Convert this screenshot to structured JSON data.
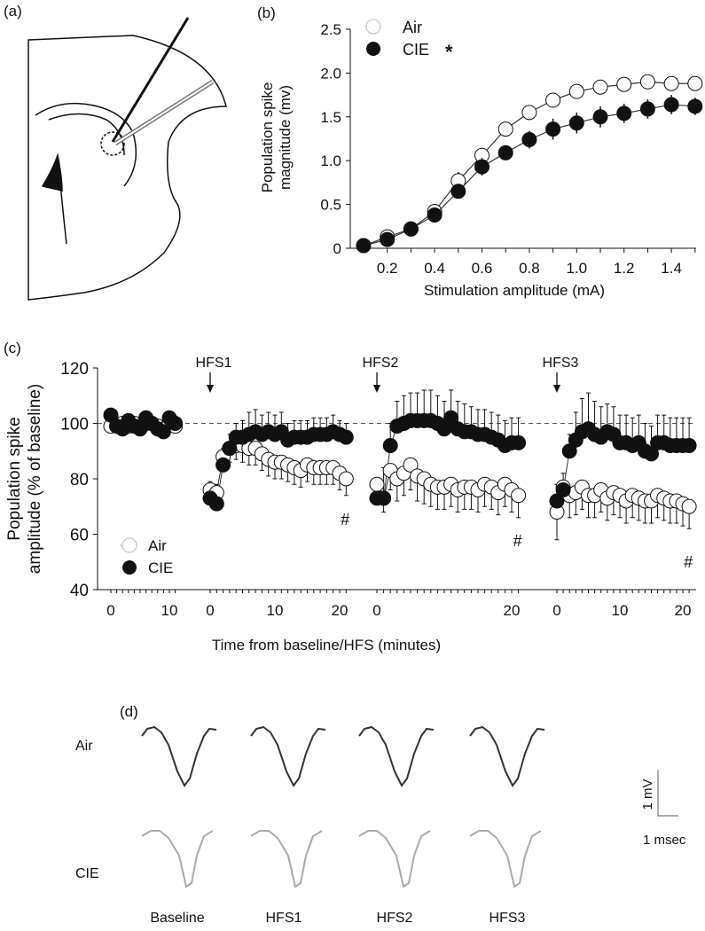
{
  "panel_labels": {
    "a": "(a)",
    "b": "(b)",
    "c": "(c)",
    "d": "(d)"
  },
  "chart_data": [
    {
      "id": "b",
      "type": "line",
      "xlabel": "Stimulation amplitude (mA)",
      "ylabel_lines": [
        "Population spike",
        "magnitude (mv)"
      ],
      "xlim": [
        0.05,
        1.55
      ],
      "ylim": [
        0,
        2.5
      ],
      "xticks": [
        "0.2",
        "0.4",
        "0.6",
        "0.8",
        "1.0",
        "1.2",
        "1.4"
      ],
      "xtick_values": [
        0.2,
        0.4,
        0.6,
        0.8,
        1.0,
        1.2,
        1.4
      ],
      "yticks": [
        "0",
        "0.5",
        "1.0",
        "1.5",
        "2.0",
        "2.5"
      ],
      "ytick_values": [
        0,
        0.5,
        1.0,
        1.5,
        2.0,
        2.5
      ],
      "legend": {
        "placement": "top-left",
        "significance_mark": "*"
      },
      "x": [
        0.1,
        0.2,
        0.3,
        0.4,
        0.5,
        0.6,
        0.7,
        0.8,
        0.9,
        1.0,
        1.1,
        1.2,
        1.3,
        1.4,
        1.5
      ],
      "series": [
        {
          "name": "Air",
          "marker": "open",
          "values": [
            0.03,
            0.13,
            0.22,
            0.42,
            0.77,
            1.06,
            1.36,
            1.55,
            1.69,
            1.79,
            1.84,
            1.87,
            1.9,
            1.88,
            1.88
          ],
          "err": [
            0.01,
            0.02,
            0.02,
            0.03,
            0.1,
            0.08,
            0.04,
            0.03,
            0.05,
            0.05,
            0.03,
            0.03,
            0.03,
            0.03,
            0.03
          ]
        },
        {
          "name": "CIE",
          "marker": "filled",
          "values": [
            0.03,
            0.1,
            0.22,
            0.38,
            0.65,
            0.93,
            1.09,
            1.24,
            1.36,
            1.43,
            1.5,
            1.54,
            1.59,
            1.64,
            1.62
          ],
          "err": [
            0.01,
            0.02,
            0.02,
            0.03,
            0.05,
            0.1,
            0.08,
            0.1,
            0.12,
            0.12,
            0.12,
            0.11,
            0.11,
            0.11,
            0.1
          ]
        }
      ]
    },
    {
      "id": "c",
      "type": "line",
      "xlabel": "Time from baseline/HFS (minutes)",
      "ylabel_lines": [
        "Population spike",
        "amplitude (% of baseline)"
      ],
      "ylim": [
        40,
        120
      ],
      "yticks": [
        "40",
        "60",
        "80",
        "100",
        "120"
      ],
      "ytick_values": [
        40,
        60,
        80,
        100,
        120
      ],
      "reference_line": 100,
      "legend": {
        "placement": "bottom-left"
      },
      "segments": [
        {
          "label": "",
          "xticks": [
            "0",
            "10"
          ],
          "xtick_values": [
            0,
            10
          ],
          "mark": "",
          "x": [
            0,
            1,
            2,
            3,
            4,
            5,
            6,
            7,
            8,
            9,
            10,
            11
          ],
          "Air": [
            99,
            99,
            100,
            99,
            100,
            99,
            100,
            100,
            99,
            98,
            100,
            99
          ],
          "CIE": [
            103,
            99,
            98,
            101,
            99,
            98,
            102,
            100,
            98,
            97,
            102,
            100
          ],
          "Air_err": [
            1,
            1,
            1,
            1,
            1,
            1,
            1,
            1,
            1,
            1,
            1,
            1
          ],
          "CIE_err": [
            1,
            1,
            1,
            1,
            1,
            1,
            1,
            1,
            1,
            1,
            1,
            1
          ]
        },
        {
          "label": "HFS1",
          "xticks": [
            "0",
            "10",
            "20"
          ],
          "xtick_values": [
            0,
            10,
            20
          ],
          "mark": "#",
          "x": [
            0,
            1,
            2,
            3,
            4,
            5,
            6,
            7,
            8,
            9,
            10,
            11,
            12,
            13,
            14,
            15,
            16,
            17,
            18,
            19,
            20,
            21
          ],
          "Air": [
            76,
            75,
            88,
            91,
            92,
            92,
            91,
            91,
            89,
            87,
            86,
            86,
            85,
            84,
            83,
            85,
            84,
            84,
            84,
            84,
            82,
            80
          ],
          "CIE": [
            73,
            71,
            85,
            91,
            95,
            95,
            96,
            97,
            96,
            97,
            96,
            97,
            94,
            95,
            95,
            95,
            96,
            96,
            96,
            97,
            96,
            95
          ],
          "Air_err": [
            4,
            4,
            5,
            5,
            5,
            6,
            6,
            6,
            6,
            6,
            6,
            6,
            6,
            6,
            6,
            6,
            6,
            6,
            6,
            6,
            6,
            6
          ],
          "CIE_err": [
            6,
            7,
            6,
            5,
            5,
            6,
            8,
            8,
            7,
            7,
            7,
            7,
            6,
            6,
            6,
            6,
            6,
            6,
            6,
            6,
            5,
            5
          ]
        },
        {
          "label": "HFS2",
          "xticks": [
            "0",
            "20"
          ],
          "xtick_values": [
            0,
            20
          ],
          "mark": "#",
          "x": [
            0,
            1,
            2,
            3,
            4,
            5,
            6,
            7,
            8,
            9,
            10,
            11,
            12,
            13,
            14,
            15,
            16,
            17,
            18,
            19,
            20,
            21
          ],
          "Air": [
            78,
            73,
            83,
            80,
            82,
            85,
            81,
            80,
            78,
            77,
            77,
            78,
            76,
            77,
            77,
            76,
            78,
            77,
            75,
            78,
            76,
            74
          ],
          "CIE": [
            73,
            73,
            92,
            99,
            100,
            101,
            101,
            101,
            101,
            100,
            98,
            102,
            98,
            97,
            97,
            96,
            96,
            95,
            94,
            92,
            93,
            93
          ],
          "Air_err": [
            4,
            5,
            7,
            8,
            8,
            9,
            9,
            9,
            8,
            8,
            8,
            8,
            8,
            8,
            8,
            8,
            8,
            8,
            8,
            8,
            8,
            8
          ],
          "CIE_err": [
            4,
            11,
            8,
            9,
            10,
            10,
            10,
            11,
            11,
            10,
            10,
            10,
            10,
            10,
            9,
            9,
            9,
            9,
            9,
            9,
            9,
            9
          ]
        },
        {
          "label": "HFS3",
          "xticks": [
            "0",
            "10",
            "20"
          ],
          "xtick_values": [
            0,
            10,
            20
          ],
          "mark": "#",
          "x": [
            0,
            1,
            2,
            3,
            4,
            5,
            6,
            7,
            8,
            9,
            10,
            11,
            12,
            13,
            14,
            15,
            16,
            17,
            18,
            19,
            20,
            21
          ],
          "Air": [
            68,
            77,
            74,
            75,
            77,
            74,
            74,
            76,
            73,
            75,
            74,
            72,
            74,
            73,
            72,
            72,
            74,
            73,
            72,
            72,
            71,
            70
          ],
          "CIE": [
            72,
            76,
            90,
            94,
            97,
            98,
            96,
            95,
            97,
            96,
            93,
            93,
            92,
            93,
            90,
            89,
            93,
            93,
            92,
            92,
            92,
            92
          ],
          "Air_err": [
            10,
            4,
            8,
            8,
            8,
            8,
            8,
            8,
            8,
            8,
            8,
            8,
            8,
            8,
            8,
            8,
            8,
            8,
            8,
            8,
            8,
            8
          ],
          "CIE_err": [
            6,
            6,
            6,
            10,
            12,
            13,
            12,
            11,
            10,
            10,
            10,
            10,
            10,
            10,
            10,
            10,
            10,
            10,
            10,
            10,
            10,
            10
          ]
        }
      ]
    }
  ],
  "legend": {
    "air": "Air",
    "cie": "CIE"
  },
  "panel_d": {
    "row_labels": [
      "Air",
      "CIE"
    ],
    "column_labels": [
      "Baseline",
      "HFS1",
      "HFS2",
      "HFS3"
    ],
    "scale_bar": {
      "vertical": "1 mV",
      "horizontal": "1 msec"
    },
    "colors": {
      "air": "#333333",
      "cie": "#aaaaaa"
    }
  }
}
